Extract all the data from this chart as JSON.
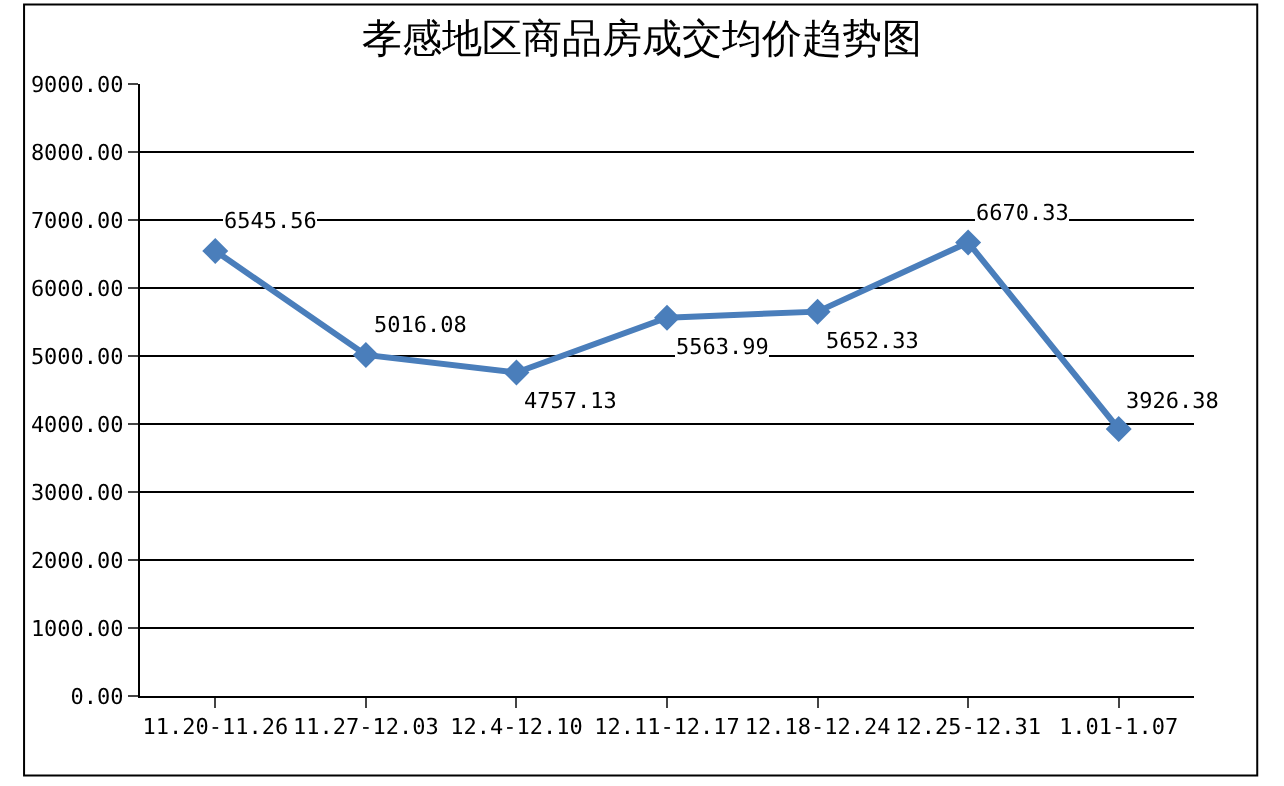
{
  "chart_data": {
    "type": "line",
    "title": "孝感地区商品房成交均价趋势图",
    "categories": [
      "11.20-11.26",
      "11.27-12.03",
      "12.4-12.10",
      "12.11-12.17",
      "12.18-12.24",
      "12.25-12.31",
      "1.01-1.07"
    ],
    "values": [
      6545.56,
      5016.08,
      4757.13,
      5563.99,
      5652.33,
      6670.33,
      3926.38
    ],
    "color": "#4a7ebb",
    "marker": "diamond",
    "line_style": "solid",
    "data_labels": true,
    "grid": "y",
    "legend": false,
    "ylim": [
      0,
      9000
    ],
    "yticks": [
      {
        "value": 0,
        "label": "0.00"
      },
      {
        "value": 1000,
        "label": "1000.00"
      },
      {
        "value": 2000,
        "label": "2000.00"
      },
      {
        "value": 3000,
        "label": "3000.00"
      },
      {
        "value": 4000,
        "label": "4000.00"
      },
      {
        "value": 5000,
        "label": "5000.00"
      },
      {
        "value": 6000,
        "label": "6000.00"
      },
      {
        "value": 7000,
        "label": "7000.00"
      },
      {
        "value": 8000,
        "label": "8000.00"
      },
      {
        "value": 9000,
        "label": "9000.00"
      }
    ]
  }
}
